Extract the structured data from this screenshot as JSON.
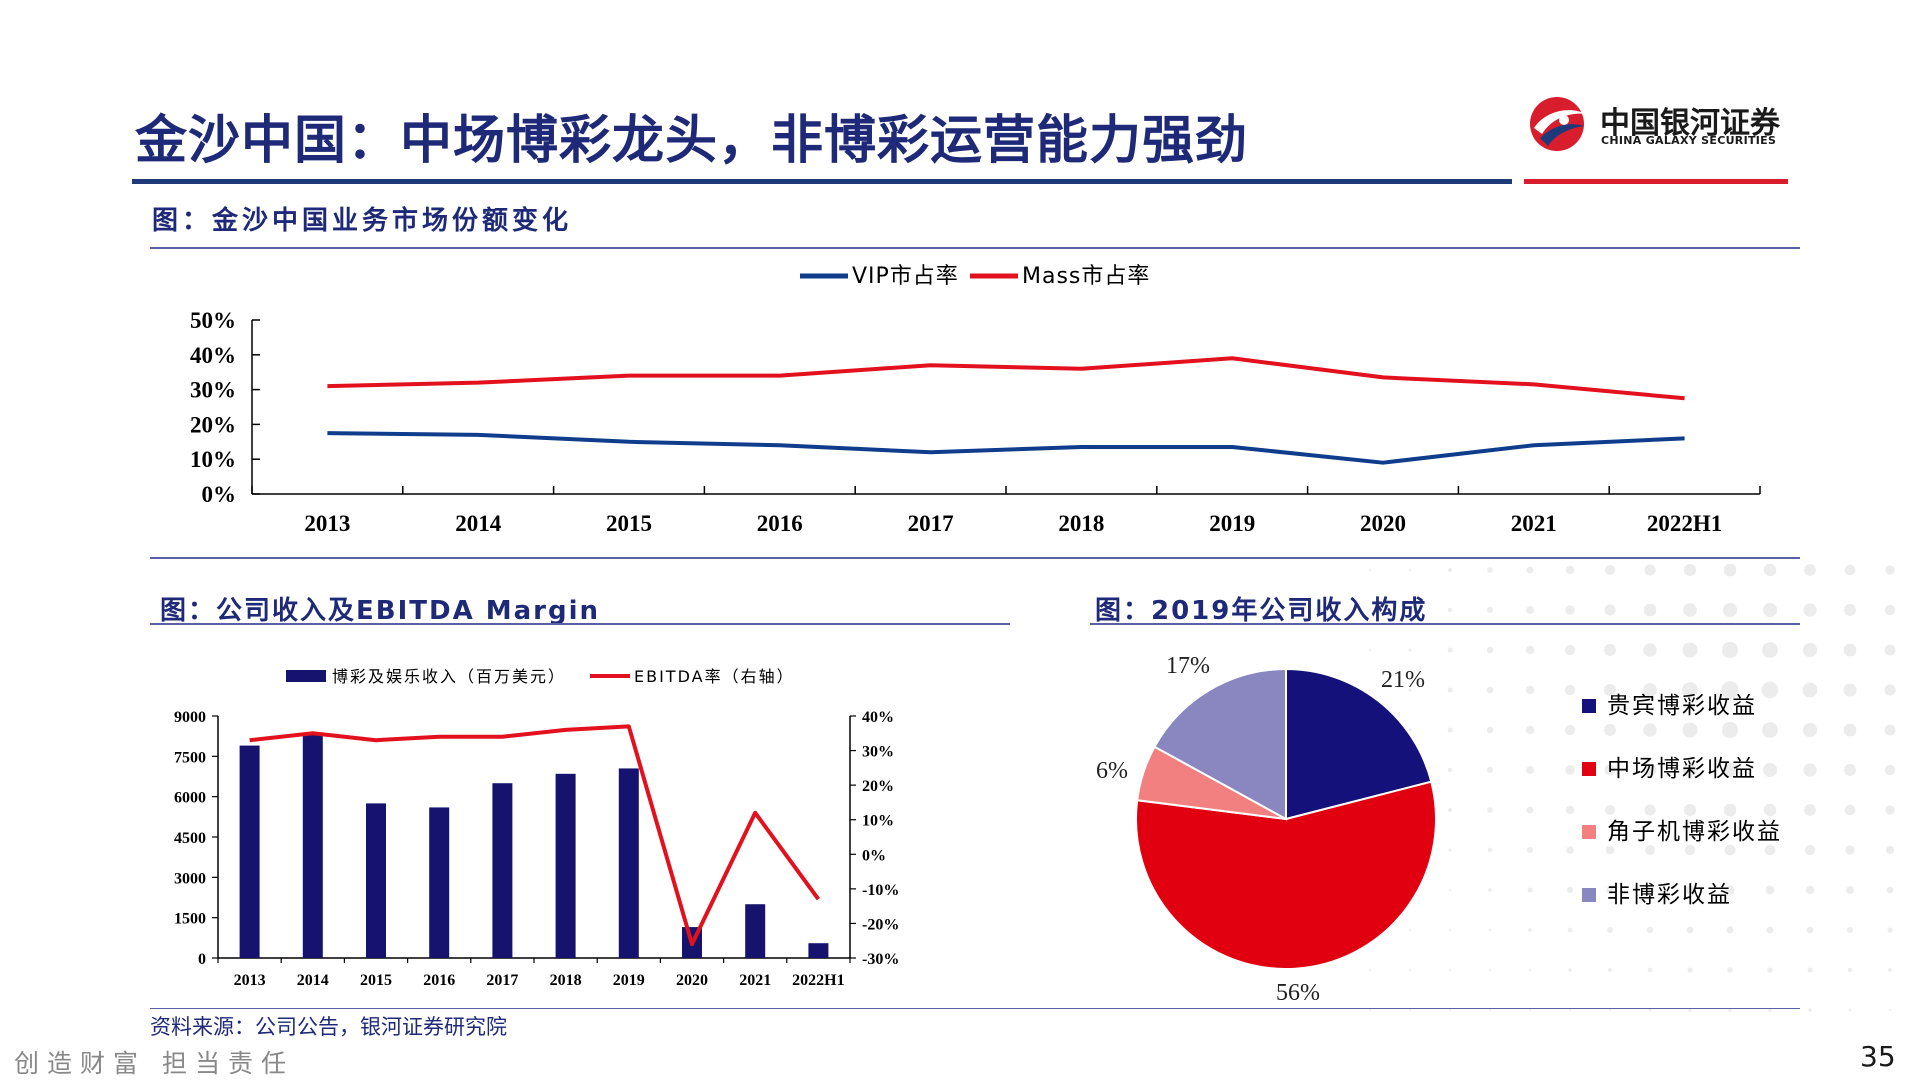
{
  "header": {
    "title": "金沙中国：中场博彩龙头，非博彩运营能力强劲",
    "logo_cn": "中国银河证券",
    "logo_en": "CHINA GALAXY SECURITIES"
  },
  "sections": {
    "top_title": "图：金沙中国业务市场份额变化",
    "bottom_left_title": "图：公司收入及EBITDA Margin",
    "bottom_right_title": "图：2019年公司收入构成"
  },
  "footer": {
    "source": "资料来源：公司公告，银河证券研究院",
    "motto": "创造财富 担当责任",
    "page_number": "35"
  },
  "colors": {
    "navy": "#0f2f7a",
    "red": "#e2111d",
    "pie_navy": "#14127a",
    "pie_red": "#e00010",
    "pie_pink": "#f28080",
    "pie_purple": "#8a86c0"
  },
  "chart_data": [
    {
      "type": "line",
      "x": [
        "2013",
        "2014",
        "2015",
        "2016",
        "2017",
        "2018",
        "2019",
        "2020",
        "2021",
        "2022H1"
      ],
      "series": [
        {
          "name": "VIP市占率",
          "values": [
            17.5,
            17,
            15,
            14,
            12,
            13.5,
            13.5,
            9,
            14,
            16
          ],
          "color": "#0f3d8c"
        },
        {
          "name": "Mass市占率",
          "values": [
            31,
            32,
            34,
            34,
            37,
            36,
            39,
            33.5,
            31.5,
            27.5
          ],
          "color": "#e2111d"
        }
      ],
      "ylim": [
        0,
        50
      ],
      "yticks": [
        "0%",
        "10%",
        "20%",
        "30%",
        "40%",
        "50%"
      ],
      "legend": "top-center"
    },
    {
      "type": "bar",
      "categories": [
        "2013",
        "2014",
        "2015",
        "2016",
        "2017",
        "2018",
        "2019",
        "2020",
        "2021",
        "2022H1"
      ],
      "series": [
        {
          "name": "博彩及娱乐收入（百万美元）",
          "values": [
            7900,
            8300,
            5750,
            5600,
            6500,
            6850,
            7050,
            1150,
            2000,
            550
          ],
          "axis": "left"
        },
        {
          "name": "EBITDA率（右轴）",
          "values": [
            33,
            35,
            33,
            34,
            34,
            36,
            37,
            -26,
            12,
            -13
          ],
          "axis": "right"
        }
      ],
      "ylim_left": [
        0,
        9000
      ],
      "yticks_left": [
        "0",
        "1500",
        "3000",
        "4500",
        "6000",
        "7500",
        "9000"
      ],
      "ylim_right": [
        -30,
        40
      ],
      "yticks_right": [
        "-30%",
        "-20%",
        "-10%",
        "0%",
        "10%",
        "20%",
        "30%",
        "40%"
      ],
      "legend": "top"
    },
    {
      "type": "pie",
      "labels": [
        "贵宾博彩收益",
        "中场博彩收益",
        "角子机博彩收益",
        "非博彩收益"
      ],
      "values": [
        21,
        56,
        6,
        17
      ],
      "value_labels": [
        "21%",
        "56%",
        "6%",
        "17%"
      ],
      "legend": "right"
    }
  ]
}
